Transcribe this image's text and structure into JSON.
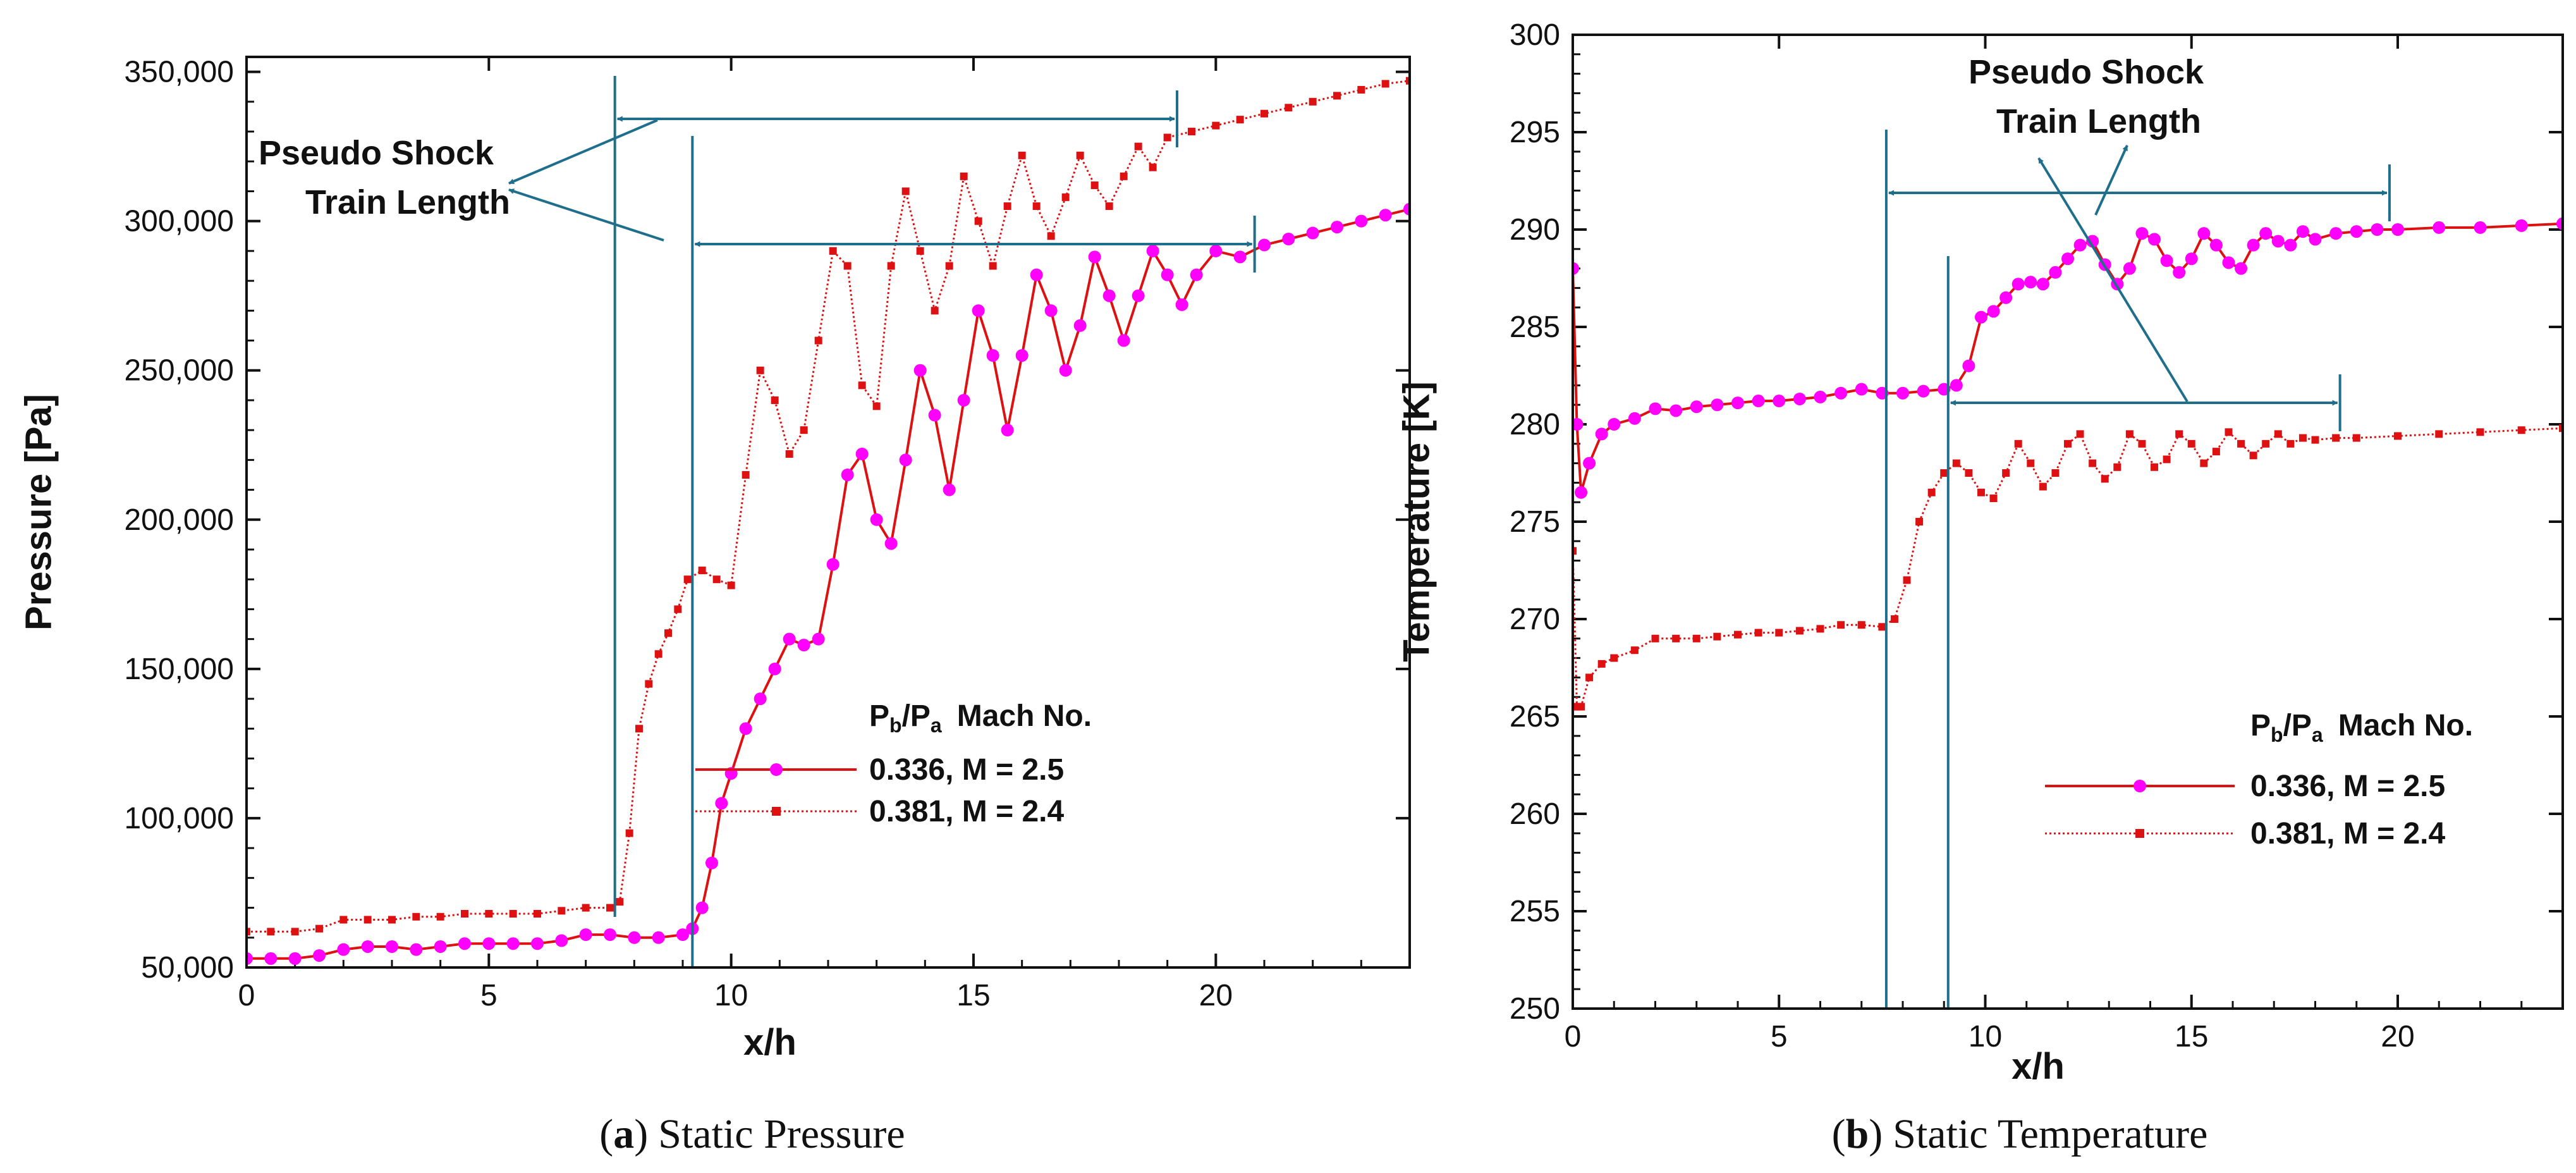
{
  "chart_data": [
    {
      "type": "line",
      "panel_label": "a",
      "caption": "Static Pressure",
      "xlabel": "x/h",
      "ylabel": "Pressure [Pa]",
      "xlim": [
        0,
        24
      ],
      "ylim": [
        50000,
        355000
      ],
      "xticks": [
        0,
        5,
        10,
        15,
        20
      ],
      "xtick_labels": [
        "0",
        "5",
        "10",
        "15",
        "20"
      ],
      "yticks": [
        50000,
        100000,
        150000,
        200000,
        250000,
        300000,
        350000
      ],
      "ytick_labels": [
        "50,000",
        "100,000",
        "150,000",
        "200,000",
        "250,000",
        "300,000",
        "350,000"
      ],
      "legend_title": "Pb/Pa  Mach No.",
      "annotation": [
        "Pseudo Shock",
        "Train Length"
      ],
      "shock_markers": [
        {
          "x_start": 7.6,
          "x_end": 19.2
        },
        {
          "x_start": 9.2,
          "x_end": 20.8
        }
      ],
      "series": [
        {
          "name": "0.336, M = 2.5",
          "color": "#ff00ff",
          "line_color": "#dd1111",
          "marker": "circle",
          "x": [
            0,
            0.5,
            1,
            1.5,
            2,
            2.5,
            3,
            3.5,
            4,
            4.5,
            5,
            5.5,
            6,
            6.5,
            7,
            7.5,
            8,
            8.5,
            9,
            9.2,
            9.4,
            9.6,
            9.8,
            10,
            10.3,
            10.6,
            10.9,
            11.2,
            11.5,
            11.8,
            12.1,
            12.4,
            12.7,
            13,
            13.3,
            13.6,
            13.9,
            14.2,
            14.5,
            14.8,
            15.1,
            15.4,
            15.7,
            16,
            16.3,
            16.6,
            16.9,
            17.2,
            17.5,
            17.8,
            18.1,
            18.4,
            18.7,
            19,
            19.3,
            19.6,
            20,
            20.5,
            21,
            21.5,
            22,
            22.5,
            23,
            23.5,
            24
          ],
          "y": [
            53000,
            53000,
            53000,
            54000,
            56000,
            57000,
            57000,
            56000,
            57000,
            58000,
            58000,
            58000,
            58000,
            59000,
            61000,
            61000,
            60000,
            60000,
            61000,
            63000,
            70000,
            85000,
            105000,
            115000,
            130000,
            140000,
            150000,
            160000,
            158000,
            160000,
            185000,
            215000,
            222000,
            200000,
            192000,
            220000,
            250000,
            235000,
            210000,
            240000,
            270000,
            255000,
            230000,
            255000,
            282000,
            270000,
            250000,
            265000,
            288000,
            275000,
            260000,
            275000,
            290000,
            282000,
            272000,
            282000,
            290000,
            288000,
            292000,
            294000,
            296000,
            298000,
            300000,
            302000,
            304000
          ]
        },
        {
          "name": "0.381, M = 2.4",
          "color": "#dd1111",
          "line_color": "#dd1111",
          "marker": "square",
          "x": [
            0,
            0.5,
            1,
            1.5,
            2,
            2.5,
            3,
            3.5,
            4,
            4.5,
            5,
            5.5,
            6,
            6.5,
            7,
            7.5,
            7.7,
            7.9,
            8.1,
            8.3,
            8.5,
            8.7,
            8.9,
            9.1,
            9.4,
            9.7,
            10,
            10.3,
            10.6,
            10.9,
            11.2,
            11.5,
            11.8,
            12.1,
            12.4,
            12.7,
            13,
            13.3,
            13.6,
            13.9,
            14.2,
            14.5,
            14.8,
            15.1,
            15.4,
            15.7,
            16,
            16.3,
            16.6,
            16.9,
            17.2,
            17.5,
            17.8,
            18.1,
            18.4,
            18.7,
            19,
            19.5,
            20,
            20.5,
            21,
            21.5,
            22,
            22.5,
            23,
            23.5,
            24
          ],
          "y": [
            62000,
            62000,
            62000,
            63000,
            66000,
            66000,
            66000,
            67000,
            67000,
            68000,
            68000,
            68000,
            68000,
            69000,
            70000,
            70000,
            72000,
            95000,
            130000,
            145000,
            155000,
            162000,
            170000,
            180000,
            183000,
            180000,
            178000,
            215000,
            250000,
            240000,
            222000,
            230000,
            260000,
            290000,
            285000,
            245000,
            238000,
            285000,
            310000,
            290000,
            270000,
            285000,
            315000,
            300000,
            285000,
            305000,
            322000,
            305000,
            295000,
            308000,
            322000,
            312000,
            305000,
            315000,
            325000,
            318000,
            328000,
            330000,
            332000,
            334000,
            336000,
            338000,
            340000,
            342000,
            344000,
            346000,
            347000
          ]
        }
      ]
    },
    {
      "type": "line",
      "panel_label": "b",
      "caption": "Static Temperature",
      "xlabel": "x/h",
      "ylabel": "Temperature [K]",
      "xlim": [
        0,
        24
      ],
      "ylim": [
        250,
        300
      ],
      "xticks": [
        0,
        5,
        10,
        15,
        20
      ],
      "xtick_labels": [
        "0",
        "5",
        "10",
        "15",
        "20"
      ],
      "yticks": [
        250,
        255,
        260,
        265,
        270,
        275,
        280,
        285,
        290,
        295,
        300
      ],
      "ytick_labels": [
        "250",
        "255",
        "260",
        "265",
        "270",
        "275",
        "280",
        "285",
        "290",
        "295",
        "300"
      ],
      "legend_title": "Pb/Pa  Mach No.",
      "annotation": [
        "Pseudo Shock",
        "Train Length"
      ],
      "shock_markers": [
        {
          "x_start": 7.6,
          "x_end": 19.8
        },
        {
          "x_start": 9.1,
          "x_end": 18.6
        }
      ],
      "series": [
        {
          "name": "0.336, M = 2.5",
          "color": "#ff00ff",
          "line_color": "#dd1111",
          "marker": "circle",
          "x": [
            0,
            0.1,
            0.2,
            0.4,
            0.7,
            1,
            1.5,
            2,
            2.5,
            3,
            3.5,
            4,
            4.5,
            5,
            5.5,
            6,
            6.5,
            7,
            7.5,
            8,
            8.5,
            9,
            9.3,
            9.6,
            9.9,
            10.2,
            10.5,
            10.8,
            11.1,
            11.4,
            11.7,
            12,
            12.3,
            12.6,
            12.9,
            13.2,
            13.5,
            13.8,
            14.1,
            14.4,
            14.7,
            15,
            15.3,
            15.6,
            15.9,
            16.2,
            16.5,
            16.8,
            17.1,
            17.4,
            17.7,
            18,
            18.5,
            19,
            19.5,
            20,
            21,
            22,
            23,
            24
          ],
          "y": [
            288,
            280,
            276.5,
            278,
            279.5,
            280,
            280.3,
            280.8,
            280.7,
            280.9,
            281,
            281.1,
            281.2,
            281.2,
            281.3,
            281.4,
            281.6,
            281.8,
            281.6,
            281.6,
            281.7,
            281.8,
            282,
            283,
            285.5,
            285.8,
            286.5,
            287.2,
            287.3,
            287.2,
            287.8,
            288.5,
            289.2,
            289.4,
            288.2,
            287.2,
            288,
            289.8,
            289.5,
            288.4,
            287.8,
            288.5,
            289.8,
            289.2,
            288.3,
            288,
            289.2,
            289.8,
            289.4,
            289.2,
            289.9,
            289.5,
            289.8,
            289.9,
            290,
            290,
            290.1,
            290.1,
            290.2,
            290.3
          ]
        },
        {
          "name": "0.381, M = 2.4",
          "color": "#dd1111",
          "line_color": "#dd1111",
          "marker": "square",
          "x": [
            0,
            0.1,
            0.2,
            0.4,
            0.7,
            1,
            1.5,
            2,
            2.5,
            3,
            3.5,
            4,
            4.5,
            5,
            5.5,
            6,
            6.5,
            7,
            7.5,
            7.8,
            8.1,
            8.4,
            8.7,
            9,
            9.3,
            9.6,
            9.9,
            10.2,
            10.5,
            10.8,
            11.1,
            11.4,
            11.7,
            12,
            12.3,
            12.6,
            12.9,
            13.2,
            13.5,
            13.8,
            14.1,
            14.4,
            14.7,
            15,
            15.3,
            15.6,
            15.9,
            16.2,
            16.5,
            16.8,
            17.1,
            17.4,
            17.7,
            18,
            18.5,
            19,
            20,
            21,
            22,
            23,
            24
          ],
          "y": [
            273.5,
            265.5,
            265.5,
            267,
            267.7,
            268,
            268.4,
            269,
            269,
            269,
            269.1,
            269.2,
            269.3,
            269.3,
            269.4,
            269.5,
            269.7,
            269.7,
            269.6,
            270,
            272,
            275,
            276.5,
            277.5,
            278,
            277.5,
            276.5,
            276.2,
            277.5,
            279,
            278,
            276.8,
            277.5,
            279,
            279.5,
            278,
            277.2,
            277.8,
            279.5,
            279,
            277.8,
            278.2,
            279.5,
            279,
            278,
            278.6,
            279.6,
            279,
            278.4,
            279,
            279.5,
            279,
            279.3,
            279.2,
            279.3,
            279.3,
            279.4,
            279.5,
            279.6,
            279.7,
            279.8
          ]
        }
      ]
    }
  ],
  "legend_symbols": {
    "ratio_main": "P",
    "sub_b": "b",
    "sep": "/",
    "sub_a": "a",
    "col2": "Mach No."
  },
  "caption_parens": {
    "open": "(",
    "close": ")"
  }
}
